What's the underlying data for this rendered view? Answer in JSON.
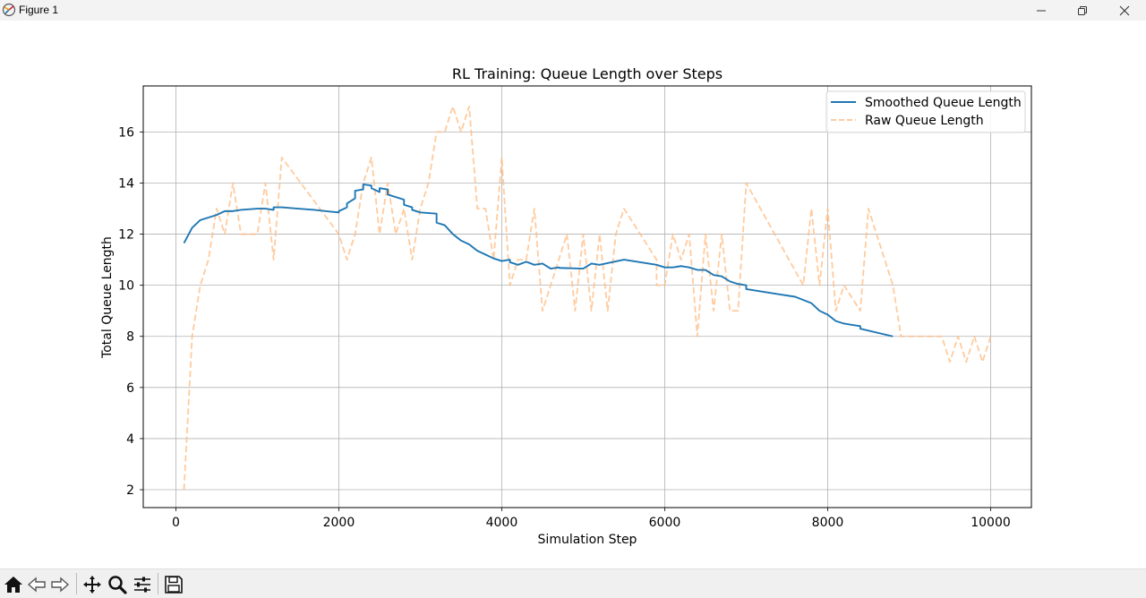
{
  "window": {
    "title": "Figure 1",
    "icon": "matplotlib-icon",
    "controls": [
      "minimize-icon",
      "restore-icon",
      "close-icon"
    ]
  },
  "toolbar": {
    "buttons": [
      "home-icon",
      "back-icon",
      "forward-icon",
      "pan-icon",
      "zoom-icon",
      "configure-subplots-icon",
      "save-icon"
    ]
  },
  "chart_data": {
    "type": "line",
    "title": "RL Training: Queue Length over Steps",
    "xlabel": "Simulation Step",
    "ylabel": "Total Queue Length",
    "xlim": [
      -400,
      10500
    ],
    "ylim": [
      1.3,
      17.8
    ],
    "xticks": [
      0,
      2000,
      4000,
      6000,
      8000,
      10000
    ],
    "xtick_labels": [
      "0",
      "2000",
      "4000",
      "6000",
      "8000",
      "10000"
    ],
    "yticks": [
      2,
      4,
      6,
      8,
      10,
      12,
      14,
      16
    ],
    "ytick_labels": [
      "2",
      "4",
      "6",
      "8",
      "10",
      "12",
      "14",
      "16"
    ],
    "grid": true,
    "legend_position": "upper right",
    "series": [
      {
        "name": "Smoothed Queue Length",
        "color": "#1f77b4",
        "style": "solid",
        "points": [
          [
            100,
            11.65
          ],
          [
            200,
            12.25
          ],
          [
            300,
            12.55
          ],
          [
            400,
            12.65
          ],
          [
            500,
            12.75
          ],
          [
            600,
            12.9
          ],
          [
            700,
            12.9
          ],
          [
            800,
            12.95
          ],
          [
            1000,
            13.0
          ],
          [
            1100,
            13.0
          ],
          [
            1200,
            12.95
          ],
          [
            1200,
            13.05
          ],
          [
            1300,
            13.05
          ],
          [
            1500,
            13.0
          ],
          [
            1700,
            12.95
          ],
          [
            1900,
            12.88
          ],
          [
            2000,
            12.85
          ],
          [
            2000,
            12.9
          ],
          [
            2100,
            13.05
          ],
          [
            2100,
            13.2
          ],
          [
            2200,
            13.4
          ],
          [
            2200,
            13.7
          ],
          [
            2300,
            13.75
          ],
          [
            2300,
            13.95
          ],
          [
            2400,
            13.9
          ],
          [
            2400,
            13.8
          ],
          [
            2500,
            13.65
          ],
          [
            2500,
            13.8
          ],
          [
            2600,
            13.75
          ],
          [
            2600,
            13.55
          ],
          [
            2800,
            13.35
          ],
          [
            2800,
            13.15
          ],
          [
            2900,
            13.05
          ],
          [
            2900,
            12.95
          ],
          [
            3000,
            12.85
          ],
          [
            3200,
            12.8
          ],
          [
            3200,
            12.45
          ],
          [
            3300,
            12.35
          ],
          [
            3400,
            12.0
          ],
          [
            3500,
            11.75
          ],
          [
            3600,
            11.6
          ],
          [
            3700,
            11.35
          ],
          [
            3800,
            11.2
          ],
          [
            3900,
            11.05
          ],
          [
            4000,
            10.95
          ],
          [
            4100,
            11.0
          ],
          [
            4100,
            10.9
          ],
          [
            4200,
            10.8
          ],
          [
            4300,
            10.92
          ],
          [
            4400,
            10.8
          ],
          [
            4500,
            10.85
          ],
          [
            4600,
            10.65
          ],
          [
            4700,
            10.7
          ],
          [
            4700,
            10.68
          ],
          [
            5000,
            10.65
          ],
          [
            5100,
            10.85
          ],
          [
            5200,
            10.8
          ],
          [
            5500,
            11.0
          ],
          [
            5900,
            10.8
          ],
          [
            6000,
            10.7
          ],
          [
            6100,
            10.7
          ],
          [
            6200,
            10.75
          ],
          [
            6300,
            10.7
          ],
          [
            6400,
            10.6
          ],
          [
            6500,
            10.6
          ],
          [
            6600,
            10.4
          ],
          [
            6700,
            10.35
          ],
          [
            6800,
            10.15
          ],
          [
            6900,
            10.05
          ],
          [
            7000,
            10.0
          ],
          [
            7000,
            9.85
          ],
          [
            7200,
            9.75
          ],
          [
            7400,
            9.65
          ],
          [
            7600,
            9.55
          ],
          [
            7800,
            9.3
          ],
          [
            7900,
            9.0
          ],
          [
            8000,
            8.85
          ],
          [
            8100,
            8.6
          ],
          [
            8200,
            8.5
          ],
          [
            8300,
            8.45
          ],
          [
            8400,
            8.4
          ],
          [
            8400,
            8.3
          ],
          [
            8800,
            8.0
          ]
        ]
      },
      {
        "name": "Raw Queue Length",
        "color": "#ffbe86",
        "style": "dashed",
        "points": [
          [
            100,
            2
          ],
          [
            200,
            8
          ],
          [
            300,
            10
          ],
          [
            400,
            11
          ],
          [
            500,
            13
          ],
          [
            600,
            12
          ],
          [
            700,
            14
          ],
          [
            800,
            12
          ],
          [
            1000,
            12
          ],
          [
            1100,
            14
          ],
          [
            1200,
            11
          ],
          [
            1300,
            15
          ],
          [
            2000,
            12
          ],
          [
            2100,
            11
          ],
          [
            2200,
            12
          ],
          [
            2300,
            14
          ],
          [
            2400,
            15
          ],
          [
            2500,
            12
          ],
          [
            2600,
            14
          ],
          [
            2700,
            12
          ],
          [
            2800,
            13
          ],
          [
            2900,
            11
          ],
          [
            3000,
            13
          ],
          [
            3100,
            14
          ],
          [
            3200,
            16
          ],
          [
            3300,
            16
          ],
          [
            3400,
            17
          ],
          [
            3500,
            16
          ],
          [
            3600,
            17
          ],
          [
            3700,
            13
          ],
          [
            3800,
            13
          ],
          [
            3900,
            11
          ],
          [
            4000,
            15
          ],
          [
            4100,
            10
          ],
          [
            4200,
            11
          ],
          [
            4300,
            11
          ],
          [
            4400,
            13
          ],
          [
            4500,
            9
          ],
          [
            4600,
            10
          ],
          [
            4700,
            11
          ],
          [
            4800,
            12
          ],
          [
            4900,
            9
          ],
          [
            5000,
            12
          ],
          [
            5100,
            9
          ],
          [
            5200,
            12
          ],
          [
            5300,
            9
          ],
          [
            5400,
            12
          ],
          [
            5500,
            13
          ],
          [
            5900,
            11
          ],
          [
            5900,
            10
          ],
          [
            6000,
            10
          ],
          [
            6100,
            12
          ],
          [
            6200,
            11
          ],
          [
            6300,
            12
          ],
          [
            6400,
            8
          ],
          [
            6500,
            12
          ],
          [
            6600,
            9
          ],
          [
            6700,
            12
          ],
          [
            6800,
            9
          ],
          [
            6900,
            9
          ],
          [
            7000,
            14
          ],
          [
            7700,
            10
          ],
          [
            7800,
            13
          ],
          [
            7900,
            10
          ],
          [
            8000,
            13
          ],
          [
            8100,
            9
          ],
          [
            8200,
            10
          ],
          [
            8400,
            9
          ],
          [
            8500,
            13
          ],
          [
            8800,
            10
          ],
          [
            8900,
            8
          ],
          [
            9400,
            8
          ],
          [
            9500,
            7
          ],
          [
            9600,
            8
          ],
          [
            9700,
            7
          ],
          [
            9800,
            8
          ],
          [
            9900,
            7
          ],
          [
            10000,
            8
          ]
        ]
      }
    ]
  }
}
